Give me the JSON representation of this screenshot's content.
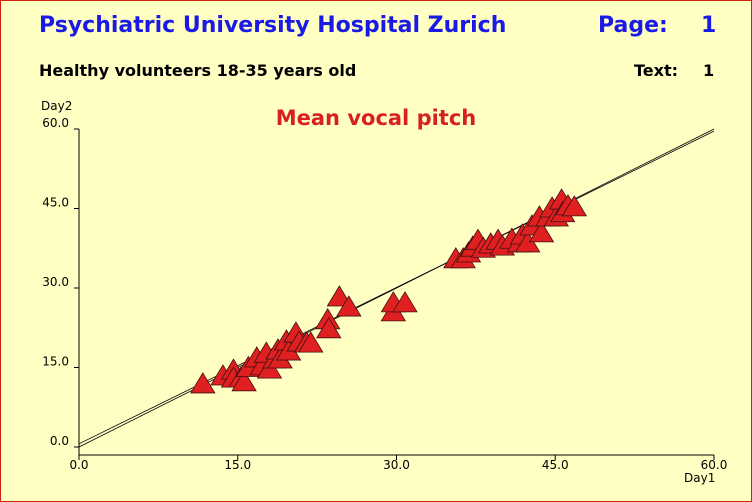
{
  "chart_data": {
    "type": "scatter",
    "header": {
      "title": "Psychiatric University Hospital Zurich",
      "page_label": "Page:",
      "page": 1,
      "subtitle": "Healthy volunteers 18-35 years old",
      "text_label": "Text:",
      "text": 1
    },
    "title": "Mean vocal pitch",
    "xlabel": "Day1",
    "ylabel": "Day2",
    "xlim": [
      0,
      60
    ],
    "ylim": [
      0,
      60
    ],
    "xticks": [
      {
        "value": 0,
        "label": "0.0"
      },
      {
        "value": 15,
        "label": "15.0"
      },
      {
        "value": 30,
        "label": "30.0"
      },
      {
        "value": 45,
        "label": "45.0"
      },
      {
        "value": 60,
        "label": "60.0"
      }
    ],
    "yticks": [
      {
        "value": 0,
        "label": "0.0"
      },
      {
        "value": 15,
        "label": "15.0"
      },
      {
        "value": 30,
        "label": "30.0"
      },
      {
        "value": 45,
        "label": "45.0"
      },
      {
        "value": 60,
        "label": "60.0"
      }
    ],
    "color": "#e02020",
    "x": [
      11.7,
      13.6,
      14.6,
      14.6,
      15.3,
      15.6,
      16,
      16.8,
      17.3,
      17.7,
      18,
      18.5,
      18.8,
      19,
      19.6,
      19.8,
      20.5,
      20.8,
      21.5,
      21.9,
      23.5,
      23.6,
      24.6,
      25.5,
      29.7,
      29.7,
      30.8,
      35.6,
      36.3,
      36.8,
      37.2,
      37.7,
      38.2,
      38.9,
      39.6,
      40,
      40.9,
      41.6,
      41.9,
      42.4,
      42.8,
      43.5,
      43.7,
      44.3,
      44.7,
      45.1,
      45.6,
      45.7,
      46.2,
      46.8
    ],
    "y": [
      11.9,
      13.4,
      14.5,
      13,
      13,
      12.3,
      15,
      16.8,
      15.3,
      17.7,
      14.7,
      16.6,
      18.3,
      16.6,
      20,
      18.1,
      21.5,
      19.8,
      19.6,
      19.6,
      24,
      22.3,
      28.3,
      26.4,
      25.5,
      27.2,
      27.2,
      35.5,
      35.5,
      36.6,
      37.7,
      39,
      37.5,
      38.3,
      39,
      37.9,
      39.2,
      38.5,
      40,
      38.5,
      41.7,
      43.4,
      40.4,
      43.4,
      45.1,
      43.4,
      46.6,
      44.2,
      45.5,
      45.3
    ],
    "lines": [
      {
        "x": [
          0,
          60
        ],
        "y": [
          0,
          60
        ],
        "color": "#000000"
      },
      {
        "x": [
          0,
          60
        ],
        "y": [
          0.6,
          59.6
        ],
        "color": "#000000"
      }
    ]
  }
}
